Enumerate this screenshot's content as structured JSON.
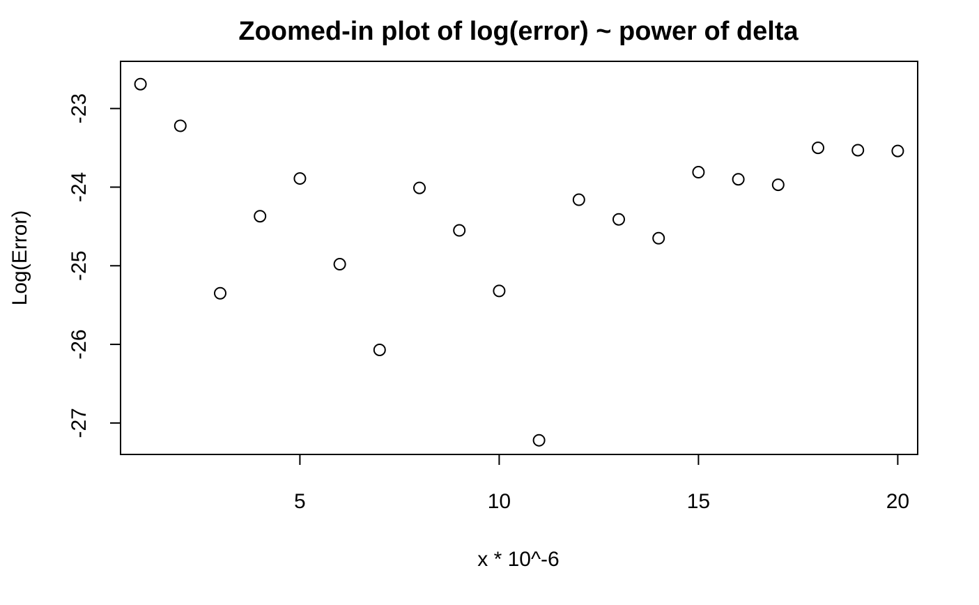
{
  "chart_data": {
    "type": "scatter",
    "title": "Zoomed-in plot of log(error) ~ power of delta",
    "xlabel": "x * 10^-6",
    "ylabel": "Log(Error)",
    "x": [
      1,
      2,
      3,
      4,
      5,
      6,
      7,
      8,
      9,
      10,
      11,
      12,
      13,
      14,
      15,
      16,
      17,
      18,
      19,
      20
    ],
    "y": [
      -22.69,
      -23.22,
      -25.35,
      -24.37,
      -23.89,
      -24.98,
      -26.07,
      -24.01,
      -24.55,
      -25.32,
      -27.22,
      -24.16,
      -24.41,
      -24.65,
      -23.81,
      -23.9,
      -23.97,
      -23.5,
      -23.53,
      -23.54
    ],
    "xlim": [
      0.5,
      20.5
    ],
    "ylim": [
      -27.4,
      -22.4
    ],
    "x_ticks": [
      5,
      10,
      15,
      20
    ],
    "y_ticks": [
      -23,
      -24,
      -25,
      -26,
      -27
    ],
    "x_tick_labels": [
      "5",
      "10",
      "15",
      "20"
    ],
    "y_tick_labels": [
      "-23",
      "-24",
      "-25",
      "-26",
      "-27"
    ],
    "marker": "open-circle",
    "grid": false,
    "legend": "none",
    "colors": {
      "marker": "#000000",
      "background": "#ffffff"
    }
  }
}
